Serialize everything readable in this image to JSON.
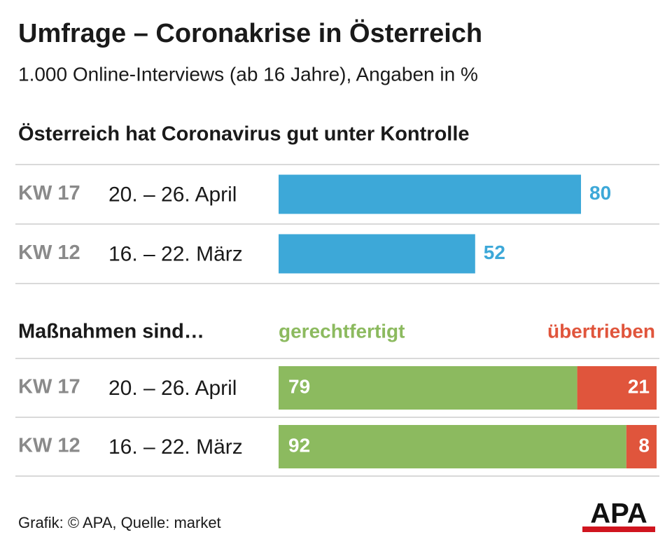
{
  "title": "Umfrage – Coronakrise in Österreich",
  "subtitle": "1.000 Online-Interviews (ab 16 Jahre), Angaben in %",
  "source": "Grafik: © APA, Quelle: market",
  "logo": "APA",
  "chart_data": [
    {
      "type": "bar",
      "title": "Österreich hat Coronavirus gut unter Kontrolle",
      "categories": [
        "KW 17",
        "KW 12"
      ],
      "category_dates": [
        "20. – 26. April",
        "16. – 22. März"
      ],
      "values": [
        80,
        52
      ],
      "color": "#3da8d8",
      "xlim": [
        0,
        100
      ]
    },
    {
      "type": "stacked_bar",
      "title": "Maßnahmen sind…",
      "categories": [
        "KW 17",
        "KW 12"
      ],
      "category_dates": [
        "20. – 26. April",
        "16. – 22. März"
      ],
      "series": [
        {
          "name": "gerechtfertigt",
          "color": "#8cba5f",
          "values": [
            79,
            92
          ]
        },
        {
          "name": "übertrieben",
          "color": "#e0553c",
          "values": [
            21,
            8
          ]
        }
      ],
      "xlim": [
        0,
        100
      ]
    }
  ]
}
